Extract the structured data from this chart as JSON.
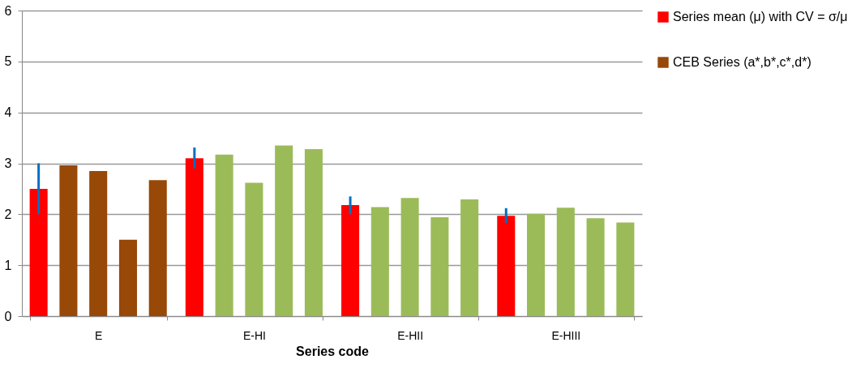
{
  "chart_data": {
    "type": "bar",
    "xlabel": "Series code",
    "categories": [
      "E",
      "E-HI",
      "E-HII",
      "E-HIII"
    ],
    "series": [
      {
        "name": "Series mean (μ)  with  CV = σ/μ",
        "color": "#ff0000",
        "values": [
          2.5,
          3.1,
          2.18,
          1.97
        ],
        "errors": [
          [
            2.0,
            3.0
          ],
          [
            2.9,
            3.31
          ],
          [
            2.0,
            2.35
          ],
          [
            1.83,
            2.12
          ]
        ]
      },
      {
        "name": "CEB Series (a*,b*,c*,d*)",
        "color": "#984807",
        "colors": [
          "#984807",
          "#9bbb59",
          "#9bbb59",
          "#9bbb59"
        ],
        "values": [
          2.96,
          3.17,
          2.14,
          2.01
        ]
      },
      {
        "colors": [
          "#984807",
          "#9bbb59",
          "#9bbb59",
          "#9bbb59"
        ],
        "values": [
          2.85,
          2.62,
          2.32,
          2.13
        ]
      },
      {
        "colors": [
          "#984807",
          "#9bbb59",
          "#9bbb59",
          "#9bbb59"
        ],
        "values": [
          1.5,
          3.35,
          1.94,
          1.92
        ]
      },
      {
        "colors": [
          "#984807",
          "#9bbb59",
          "#9bbb59",
          "#9bbb59"
        ],
        "values": [
          2.67,
          3.28,
          2.29,
          1.84
        ]
      }
    ],
    "ylim": [
      0,
      6
    ],
    "yticks": [
      0,
      1,
      2,
      3,
      4,
      5,
      6
    ],
    "grid": "y",
    "legend": "right"
  }
}
